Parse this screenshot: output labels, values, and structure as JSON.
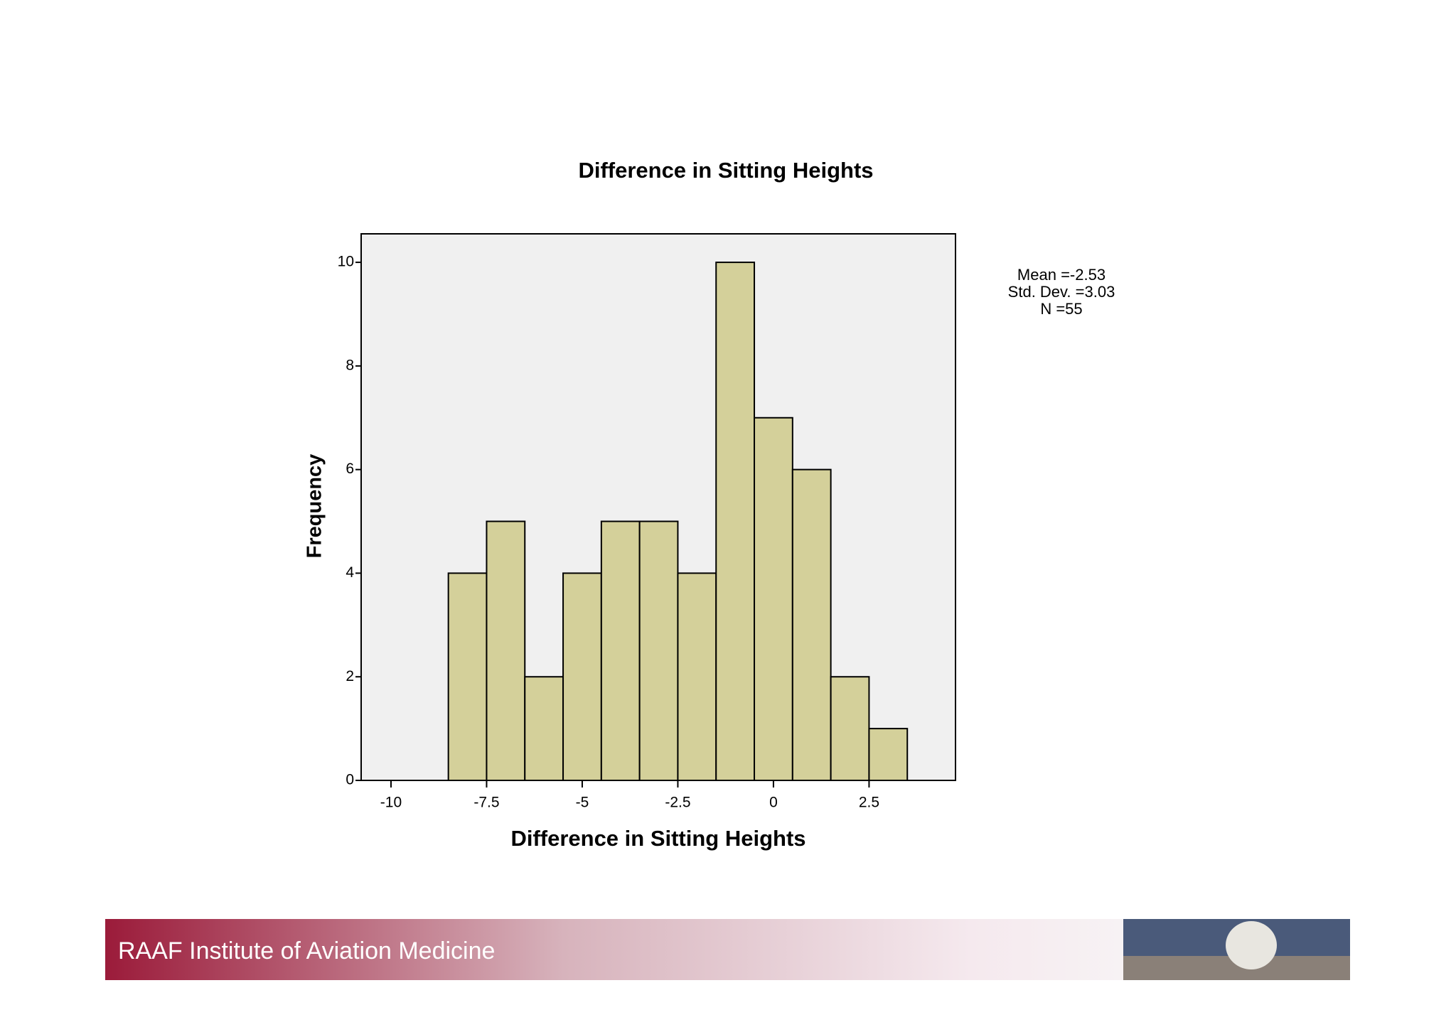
{
  "chart_data": {
    "type": "histogram",
    "title": "Difference in Sitting Heights",
    "x_label": "Difference in Sitting Heights",
    "y_label": "Frequency",
    "bins": [
      -8.5,
      -7.5,
      -6.5,
      -5.5,
      -4.5,
      -3.5,
      -2.5,
      -1.5,
      -0.5,
      0.5,
      1.5,
      2.5,
      3.5
    ],
    "values": [
      4,
      5,
      2,
      4,
      5,
      5,
      4,
      10,
      7,
      6,
      2,
      1
    ],
    "color": "#d4d09a",
    "xlim": [
      -10.78,
      4.76
    ],
    "xticks": [
      -10,
      -7.5,
      -5,
      -2.5,
      0,
      2.5
    ],
    "ylim": [
      0,
      10.55
    ],
    "yticks": [
      0,
      2,
      4,
      6,
      8,
      10
    ],
    "annotations": [
      "Mean =-2.53",
      "Std. Dev. =3.03",
      "N =55"
    ]
  },
  "footer_text": "RAAF Institute of Aviation Medicine"
}
